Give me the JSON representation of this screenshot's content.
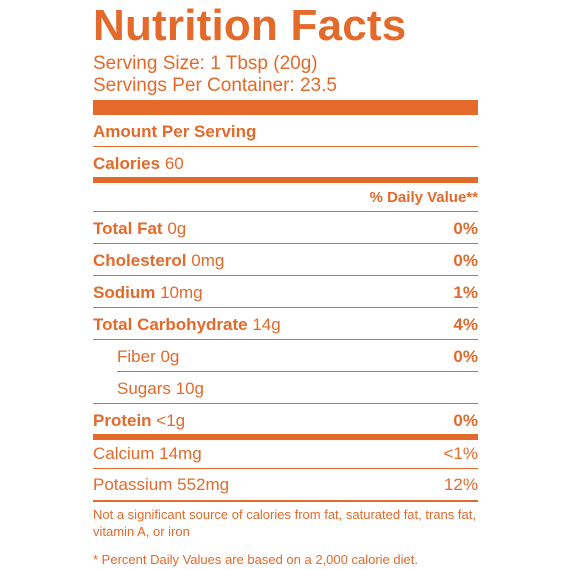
{
  "label": {
    "title": "Nutrition Facts",
    "serving_size": "Serving Size: 1 Tbsp (20g)",
    "servings_per_container": "Servings Per Container: 23.5",
    "amount_per_serving": "Amount Per Serving",
    "calories_label": "Calories",
    "calories_value": "60",
    "daily_value_header": "% Daily Value**",
    "nutrients": [
      {
        "name": "Total Fat",
        "amount": "0g",
        "dv": "0%"
      },
      {
        "name": "Cholesterol",
        "amount": "0mg",
        "dv": "0%"
      },
      {
        "name": "Sodium",
        "amount": "10mg",
        "dv": "1%"
      },
      {
        "name": "Total Carbohydrate",
        "amount": "14g",
        "dv": "4%"
      },
      {
        "name": "Fiber",
        "amount": "0g",
        "dv": "0%"
      },
      {
        "name": "Sugars",
        "amount": "10g",
        "dv": ""
      },
      {
        "name": "Protein",
        "amount": "<1g",
        "dv": "0%"
      },
      {
        "name": "Calcium",
        "amount": "14mg",
        "dv": "<1%"
      },
      {
        "name": "Potassium",
        "amount": "552mg",
        "dv": "12%"
      }
    ],
    "footnote_1": "Not a significant source of calories from fat, saturated fat, trans fat, vitamin A, or iron",
    "footnote_2": "* Percent Daily Values are based on a 2,000 calorie diet.",
    "accent_color": "#e36a2a"
  }
}
